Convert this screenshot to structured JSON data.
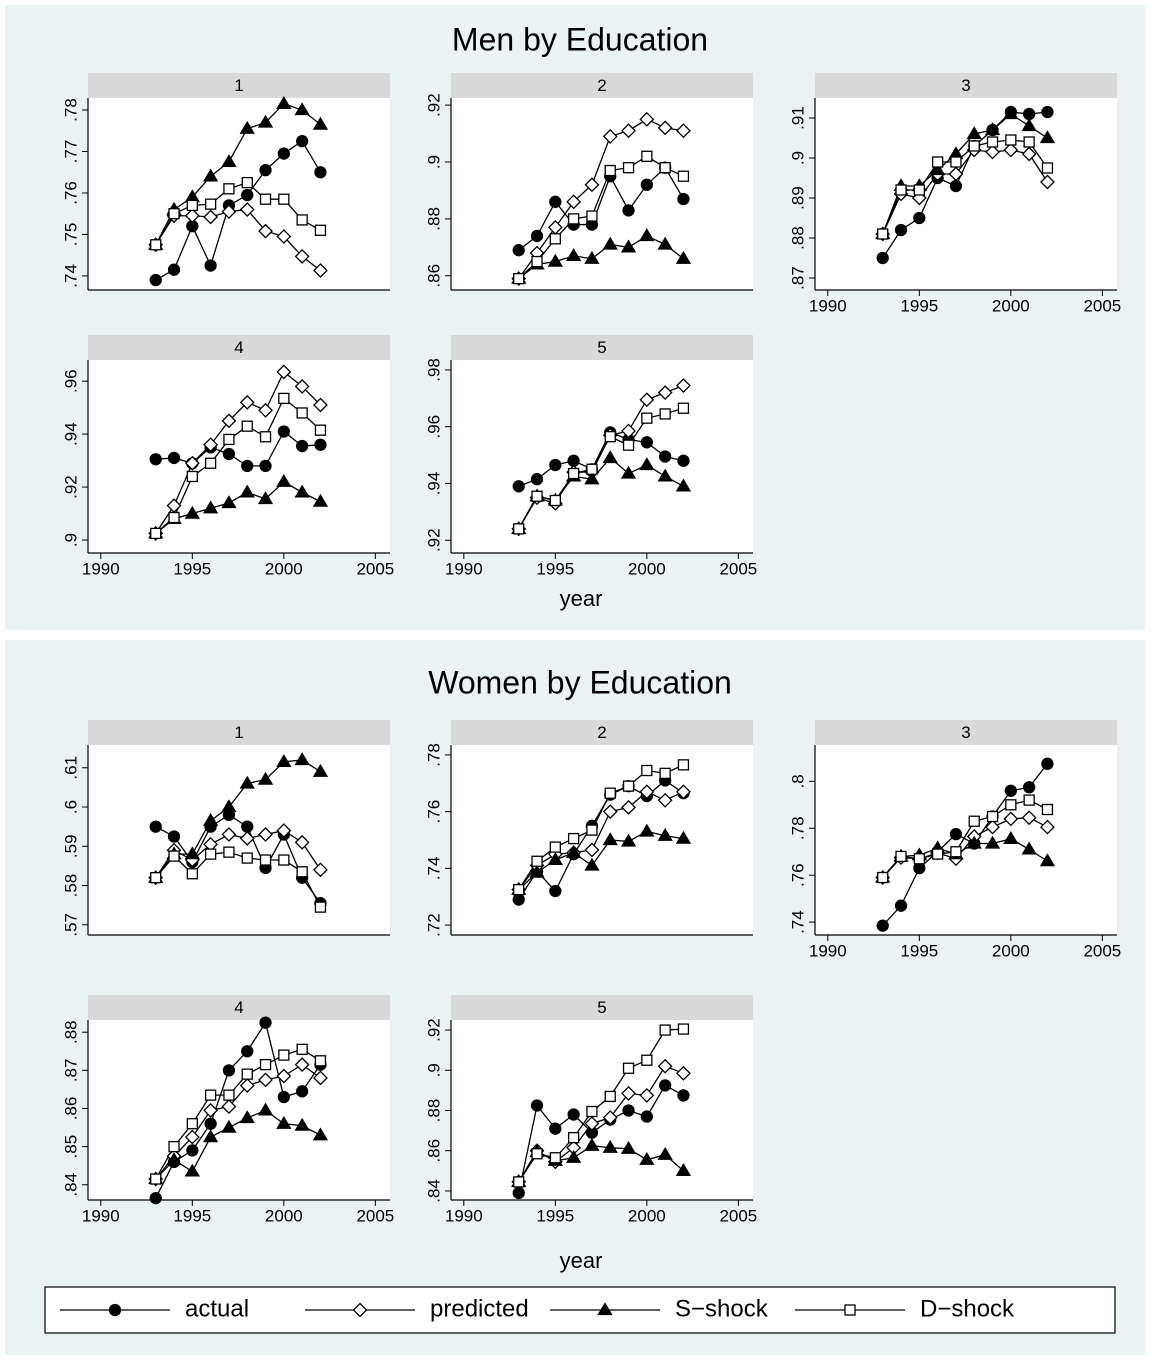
{
  "chart_data": [
    {
      "type": "line",
      "title": "Men by Education",
      "x_label": "year",
      "x": [
        1993,
        1994,
        1995,
        1996,
        1997,
        1998,
        1999,
        2000,
        2001,
        2002
      ],
      "xlim": [
        1989.3,
        2005.8
      ],
      "xticks": [
        1990,
        1995,
        2000,
        2005
      ],
      "panels": [
        {
          "title": "1",
          "ylim": [
            0.7366,
            0.7829
          ],
          "yticks": [
            {
              "value": 0.74,
              "label": ".74"
            },
            {
              "value": 0.75,
              "label": ".75"
            },
            {
              "value": 0.76,
              "label": ".76"
            },
            {
              "value": 0.77,
              "label": ".77"
            },
            {
              "value": 0.78,
              "label": ".78"
            }
          ],
          "series": [
            {
              "values": [
                0.739,
                0.7415,
                0.752,
                0.7425,
                0.757,
                0.7595,
                0.7655,
                0.7695,
                0.7725,
                0.765
              ]
            },
            {
              "values": [
                0.7475,
                0.7545,
                0.7545,
                0.7542,
                0.7555,
                0.756,
                0.7508,
                0.7495,
                0.7447,
                0.7413
              ]
            },
            {
              "values": [
                0.7475,
                0.756,
                0.759,
                0.764,
                0.7675,
                0.7755,
                0.777,
                0.7815,
                0.78,
                0.7765
              ]
            },
            {
              "values": [
                0.7475,
                0.755,
                0.757,
                0.7573,
                0.761,
                0.7625,
                0.7585,
                0.7585,
                0.7535,
                0.751
              ]
            }
          ]
        },
        {
          "title": "2",
          "ylim": [
            0.855,
            0.9225
          ],
          "yticks": [
            {
              "value": 0.86,
              "label": ".86"
            },
            {
              "value": 0.88,
              "label": ".88"
            },
            {
              "value": 0.9,
              "label": ".9"
            },
            {
              "value": 0.92,
              "label": ".92"
            }
          ],
          "series": [
            {
              "values": [
                0.869,
                0.874,
                0.886,
                0.878,
                0.878,
                0.895,
                0.883,
                0.892,
                0.898,
                0.887
              ]
            },
            {
              "values": [
                0.859,
                0.868,
                0.877,
                0.886,
                0.892,
                0.909,
                0.911,
                0.915,
                0.912,
                0.911
              ]
            },
            {
              "values": [
                0.859,
                0.864,
                0.865,
                0.867,
                0.866,
                0.871,
                0.87,
                0.874,
                0.871,
                0.866
              ]
            },
            {
              "values": [
                0.859,
                0.865,
                0.873,
                0.88,
                0.881,
                0.897,
                0.898,
                0.902,
                0.898,
                0.895
              ]
            }
          ]
        },
        {
          "title": "3",
          "ylim": [
            0.867,
            0.915
          ],
          "yticks": [
            {
              "value": 0.87,
              "label": ".87"
            },
            {
              "value": 0.88,
              "label": ".88"
            },
            {
              "value": 0.89,
              "label": ".89"
            },
            {
              "value": 0.9,
              "label": ".9"
            },
            {
              "value": 0.91,
              "label": ".91"
            }
          ],
          "series": [
            {
              "values": [
                0.875,
                0.882,
                0.885,
                0.895,
                0.893,
                0.903,
                0.907,
                0.9115,
                0.911,
                0.9115
              ]
            },
            {
              "values": [
                0.881,
                0.891,
                0.89,
                0.896,
                0.896,
                0.902,
                0.9015,
                0.902,
                0.901,
                0.894
              ]
            },
            {
              "values": [
                0.881,
                0.893,
                0.893,
                0.897,
                0.901,
                0.906,
                0.907,
                0.911,
                0.908,
                0.905
              ]
            },
            {
              "values": [
                0.881,
                0.892,
                0.892,
                0.899,
                0.899,
                0.903,
                0.904,
                0.9045,
                0.904,
                0.8975
              ]
            }
          ]
        },
        {
          "title": "4",
          "ylim": [
            0.8951,
            0.968
          ],
          "yticks": [
            {
              "value": 0.9,
              "label": ".9"
            },
            {
              "value": 0.92,
              "label": ".92"
            },
            {
              "value": 0.94,
              "label": ".94"
            },
            {
              "value": 0.96,
              "label": ".96"
            }
          ],
          "series": [
            {
              "values": [
                0.9305,
                0.931,
                0.929,
                0.935,
                0.9325,
                0.928,
                0.928,
                0.941,
                0.9355,
                0.936
              ]
            },
            {
              "values": [
                0.9025,
                0.913,
                0.929,
                0.936,
                0.945,
                0.952,
                0.949,
                0.9635,
                0.958,
                0.951
              ]
            },
            {
              "values": [
                0.9025,
                0.908,
                0.91,
                0.912,
                0.914,
                0.918,
                0.9155,
                0.922,
                0.918,
                0.9145
              ]
            },
            {
              "values": [
                0.9025,
                0.9085,
                0.924,
                0.929,
                0.938,
                0.943,
                0.939,
                0.9535,
                0.948,
                0.9415
              ]
            }
          ]
        },
        {
          "title": "5",
          "ylim": [
            0.9155,
            0.9835
          ],
          "yticks": [
            {
              "value": 0.92,
              "label": ".92"
            },
            {
              "value": 0.94,
              "label": ".94"
            },
            {
              "value": 0.96,
              "label": ".96"
            },
            {
              "value": 0.98,
              "label": ".98"
            }
          ],
          "series": [
            {
              "values": [
                0.939,
                0.9415,
                0.9465,
                0.948,
                0.945,
                0.958,
                0.9555,
                0.9545,
                0.9495,
                0.948
              ]
            },
            {
              "values": [
                0.924,
                0.935,
                0.933,
                0.944,
                0.944,
                0.957,
                0.9585,
                0.9695,
                0.972,
                0.9745
              ]
            },
            {
              "values": [
                0.924,
                0.9355,
                0.934,
                0.9425,
                0.9415,
                0.949,
                0.9435,
                0.9465,
                0.9425,
                0.939
              ]
            },
            {
              "values": [
                0.924,
                0.9355,
                0.934,
                0.9435,
                0.945,
                0.9565,
                0.9535,
                0.963,
                0.9645,
                0.9665
              ]
            }
          ]
        }
      ]
    },
    {
      "type": "line",
      "title": "Women by Education",
      "x_label": "year",
      "x": [
        1993,
        1994,
        1995,
        1996,
        1997,
        1998,
        1999,
        2000,
        2001,
        2002
      ],
      "xlim": [
        1989.3,
        2005.8
      ],
      "xticks": [
        1990,
        1995,
        2000,
        2005
      ],
      "panels": [
        {
          "title": "1",
          "ylim": [
            0.5674,
            0.6158
          ],
          "yticks": [
            {
              "value": 0.57,
              "label": ".57"
            },
            {
              "value": 0.58,
              "label": ".58"
            },
            {
              "value": 0.59,
              "label": ".59"
            },
            {
              "value": 0.6,
              "label": ".6"
            },
            {
              "value": 0.61,
              "label": ".61"
            }
          ],
          "series": [
            {
              "values": [
                0.595,
                0.5925,
                0.586,
                0.595,
                0.598,
                0.595,
                0.5845,
                0.593,
                0.582,
                0.5755
              ]
            },
            {
              "values": [
                0.582,
                0.589,
                0.5865,
                0.5905,
                0.593,
                0.592,
                0.593,
                0.594,
                0.591,
                0.584
              ]
            },
            {
              "values": [
                0.582,
                0.588,
                0.588,
                0.5965,
                0.6,
                0.606,
                0.607,
                0.6115,
                0.612,
                0.609
              ]
            },
            {
              "values": [
                0.582,
                0.5875,
                0.583,
                0.588,
                0.5885,
                0.587,
                0.5865,
                0.5865,
                0.5835,
                0.5745
              ]
            }
          ]
        },
        {
          "title": "2",
          "ylim": [
            0.7165,
            0.7835
          ],
          "yticks": [
            {
              "value": 0.72,
              "label": ".72"
            },
            {
              "value": 0.74,
              "label": ".74"
            },
            {
              "value": 0.76,
              "label": ".76"
            },
            {
              "value": 0.78,
              "label": ".78"
            }
          ],
          "series": [
            {
              "values": [
                0.729,
                0.739,
                0.732,
                0.745,
                0.755,
                0.766,
                0.769,
                0.7655,
                0.771,
                0.7665
              ]
            },
            {
              "values": [
                0.7325,
                0.741,
                0.745,
                0.7455,
                0.7465,
                0.76,
                0.7615,
                0.767,
                0.764,
                0.767
              ]
            },
            {
              "values": [
                0.7325,
                0.7385,
                0.743,
                0.7455,
                0.741,
                0.75,
                0.7495,
                0.753,
                0.7515,
                0.7505
              ]
            },
            {
              "values": [
                0.7325,
                0.7425,
                0.7475,
                0.7505,
                0.7535,
                0.7665,
                0.769,
                0.7745,
                0.7735,
                0.7765
              ]
            }
          ]
        },
        {
          "title": "3",
          "ylim": [
            0.7345,
            0.8155
          ],
          "yticks": [
            {
              "value": 0.74,
              "label": ".74"
            },
            {
              "value": 0.76,
              "label": ".76"
            },
            {
              "value": 0.78,
              "label": ".78"
            },
            {
              "value": 0.8,
              "label": ".8"
            }
          ],
          "series": [
            {
              "values": [
                0.7385,
                0.747,
                0.763,
                0.77,
                0.7775,
                0.7735,
                0.785,
                0.796,
                0.7975,
                0.8075
              ]
            },
            {
              "values": [
                0.759,
                0.7675,
                0.767,
                0.7695,
                0.767,
                0.7765,
                0.7805,
                0.784,
                0.7845,
                0.7805
              ]
            },
            {
              "values": [
                0.759,
                0.768,
                0.7685,
                0.7715,
                0.769,
                0.7735,
                0.7735,
                0.7755,
                0.771,
                0.766
              ]
            },
            {
              "values": [
                0.759,
                0.768,
                0.767,
                0.769,
                0.77,
                0.783,
                0.785,
                0.79,
                0.792,
                0.788
              ]
            }
          ]
        },
        {
          "title": "4",
          "ylim": [
            0.836,
            0.8832
          ],
          "yticks": [
            {
              "value": 0.84,
              "label": ".84"
            },
            {
              "value": 0.85,
              "label": ".85"
            },
            {
              "value": 0.86,
              "label": ".86"
            },
            {
              "value": 0.87,
              "label": ".87"
            },
            {
              "value": 0.88,
              "label": ".88"
            }
          ],
          "series": [
            {
              "values": [
                0.8365,
                0.846,
                0.849,
                0.856,
                0.87,
                0.875,
                0.8825,
                0.863,
                0.8645,
                0.8715
              ]
            },
            {
              "values": [
                0.8415,
                0.8475,
                0.8525,
                0.8595,
                0.8605,
                0.866,
                0.8675,
                0.8685,
                0.8715,
                0.868
              ]
            },
            {
              "values": [
                0.8415,
                0.8465,
                0.8435,
                0.8525,
                0.855,
                0.8575,
                0.8595,
                0.856,
                0.8555,
                0.853
              ]
            },
            {
              "values": [
                0.8415,
                0.85,
                0.856,
                0.8635,
                0.8635,
                0.869,
                0.8715,
                0.874,
                0.8755,
                0.8725
              ]
            }
          ]
        },
        {
          "title": "5",
          "ylim": [
            0.8355,
            0.925
          ],
          "yticks": [
            {
              "value": 0.84,
              "label": ".84"
            },
            {
              "value": 0.86,
              "label": ".86"
            },
            {
              "value": 0.88,
              "label": ".88"
            },
            {
              "value": 0.9,
              "label": ".9"
            },
            {
              "value": 0.92,
              "label": ".92"
            }
          ],
          "series": [
            {
              "values": [
                0.839,
                0.8825,
                0.871,
                0.878,
                0.869,
                0.8755,
                0.88,
                0.877,
                0.8925,
                0.8875
              ]
            },
            {
              "values": [
                0.8445,
                0.86,
                0.8545,
                0.8615,
                0.8735,
                0.8765,
                0.8885,
                0.8875,
                0.902,
                0.8985
              ]
            },
            {
              "values": [
                0.8445,
                0.8595,
                0.855,
                0.8565,
                0.8625,
                0.8615,
                0.861,
                0.8555,
                0.858,
                0.85
              ]
            },
            {
              "values": [
                0.8445,
                0.8585,
                0.8565,
                0.8665,
                0.8795,
                0.887,
                0.901,
                0.905,
                0.92,
                0.9205
              ]
            }
          ]
        }
      ]
    }
  ],
  "legend": [
    {
      "name": "actual",
      "marker": "circle"
    },
    {
      "name": "predicted",
      "marker": "diamond"
    },
    {
      "name": "S−shock",
      "marker": "triangle"
    },
    {
      "name": "D−shock",
      "marker": "square"
    }
  ],
  "background": "#eaf2f3",
  "header_color": "#d9d9d9"
}
